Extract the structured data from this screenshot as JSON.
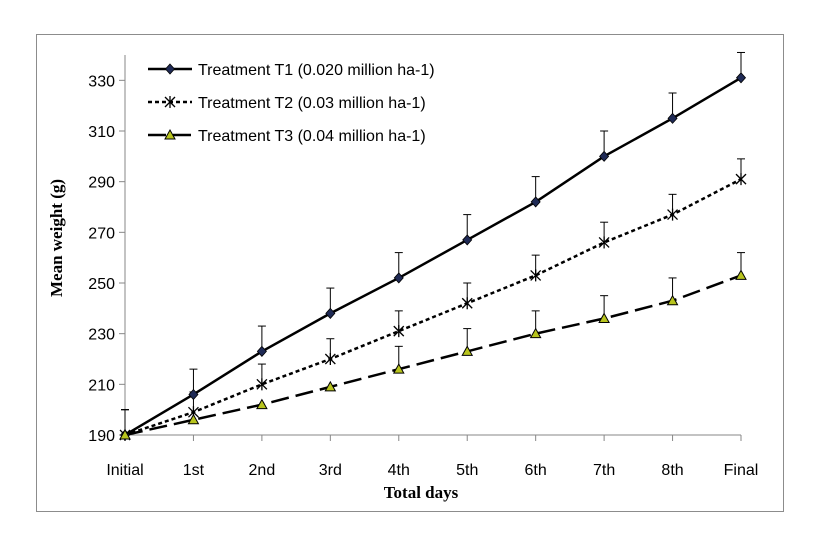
{
  "chart_data": {
    "type": "line",
    "title": "",
    "xlabel": "Total days",
    "ylabel": "Mean weight (g)",
    "categories": [
      "Initial",
      "1st",
      "2nd",
      "3rd",
      "4th",
      "5th",
      "6th",
      "7th",
      "8th",
      "Final"
    ],
    "ylim": [
      190,
      340
    ],
    "yticks": [
      "190",
      "210",
      "230",
      "250",
      "270",
      "290",
      "310",
      "330"
    ],
    "grid": false,
    "legend_position": "top-left",
    "series": [
      {
        "name": "Treatment T1 (0.020 million ha-1)",
        "values": [
          190,
          206,
          223,
          238,
          252,
          267,
          282,
          300,
          315,
          331
        ],
        "error": [
          10,
          10,
          10,
          10,
          10,
          10,
          10,
          10,
          10,
          10
        ],
        "line_style": "solid",
        "marker": "diamond",
        "color": "#000000",
        "marker_fill": "#1f2a55"
      },
      {
        "name": "Treatment T2 (0.03 million ha-1)",
        "values": [
          190,
          199,
          210,
          220,
          231,
          242,
          253,
          266,
          277,
          291
        ],
        "error": [
          10,
          8,
          8,
          8,
          8,
          8,
          8,
          8,
          8,
          8
        ],
        "line_style": "dotted",
        "marker": "asterisk",
        "color": "#000000",
        "marker_fill": "#000000"
      },
      {
        "name": "Treatment T3 (0.04 million ha-1)",
        "values": [
          190,
          196,
          202,
          209,
          216,
          223,
          230,
          236,
          243,
          253
        ],
        "error": [
          10,
          0,
          0,
          0,
          9,
          9,
          9,
          9,
          9,
          9
        ],
        "line_style": "dashed",
        "marker": "triangle",
        "color": "#000000",
        "marker_fill": "#b8c41e"
      }
    ]
  }
}
